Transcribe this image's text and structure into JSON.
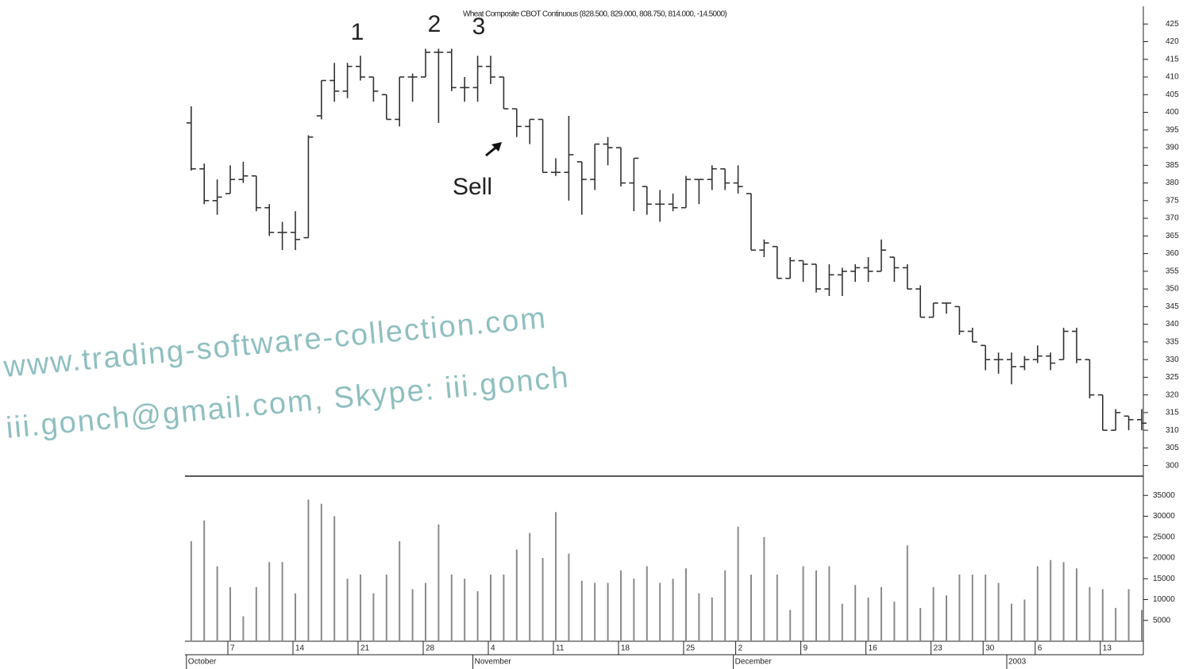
{
  "chart_data": {
    "type": "ohlc",
    "title": "Wheat Composite CBOT Continuous (828.500, 829.000, 808.750, 814.000, -14.5000)",
    "annotations": [
      "1",
      "2",
      "3",
      "Sell"
    ],
    "watermark": [
      "www.trading-software-collection.com",
      "iii.gonch@gmail.com, Skype: iii.gonch"
    ],
    "color": "#333333",
    "categories": [
      null,
      null,
      null,
      "7",
      null,
      null,
      null,
      null,
      "14",
      null,
      null,
      null,
      null,
      "21",
      null,
      null,
      null,
      null,
      "28",
      null,
      null,
      null,
      null,
      "4",
      null,
      null,
      null,
      null,
      "11",
      null,
      null,
      null,
      null,
      "18",
      null,
      null,
      null,
      null,
      "25",
      null,
      null,
      null,
      "2",
      null,
      null,
      null,
      null,
      "9",
      null,
      null,
      null,
      null,
      "16",
      null,
      null,
      null,
      null,
      "23",
      null,
      null,
      null,
      "30",
      null,
      null,
      null,
      "6",
      null,
      null,
      null,
      null,
      "13",
      null,
      null,
      null
    ],
    "months": [
      "October",
      null,
      null,
      null,
      null,
      null,
      null,
      null,
      null,
      null,
      null,
      null,
      null,
      null,
      null,
      null,
      null,
      null,
      null,
      null,
      null,
      null,
      "November",
      null,
      null,
      null,
      null,
      null,
      null,
      null,
      null,
      null,
      null,
      null,
      null,
      null,
      null,
      null,
      null,
      null,
      null,
      null,
      "December",
      null,
      null,
      null,
      null,
      null,
      null,
      null,
      null,
      null,
      null,
      null,
      null,
      null,
      null,
      null,
      null,
      null,
      null,
      null,
      null,
      "2003",
      null,
      null,
      null,
      null,
      null,
      null,
      null,
      null,
      null,
      null
    ],
    "open": [
      397,
      384,
      375,
      377,
      381,
      382,
      373,
      366,
      366,
      364.5,
      399,
      409,
      406,
      413,
      410,
      405,
      398,
      410,
      410,
      417,
      417,
      407,
      407,
      413,
      410,
      401,
      396,
      398,
      383,
      383,
      386,
      381,
      391,
      390,
      380,
      379,
      374,
      374,
      373,
      381,
      381,
      384,
      380,
      377,
      361,
      362,
      353,
      358,
      357,
      350,
      354,
      355,
      356,
      355,
      359,
      356,
      350,
      342,
      346,
      345,
      338,
      334,
      330,
      330,
      328,
      330,
      331,
      330,
      338,
      330,
      320,
      310,
      314,
      313
    ],
    "high": [
      401.7,
      385.5,
      381,
      385,
      386,
      382,
      374,
      369,
      372,
      393.5,
      409,
      414,
      414,
      416,
      410,
      405,
      410,
      411,
      418,
      418,
      418,
      410,
      416,
      416,
      410,
      401,
      398,
      398,
      387,
      399,
      386,
      391,
      393,
      390,
      387,
      379,
      378,
      377,
      382,
      381,
      385,
      384,
      385,
      377,
      364,
      362,
      359,
      358,
      357,
      357,
      356,
      357,
      359,
      364,
      359,
      357,
      351,
      346,
      346,
      345,
      339,
      334,
      332,
      332,
      331,
      334,
      332,
      339,
      339,
      330,
      320,
      316,
      314,
      316
    ],
    "low": [
      383.5,
      374,
      371,
      377,
      380,
      372,
      365,
      361,
      361,
      364.5,
      398,
      403,
      404,
      409,
      403,
      398,
      396,
      403,
      410,
      397,
      406,
      403,
      403,
      408,
      401,
      393,
      391,
      383,
      382,
      375,
      371,
      378,
      385,
      379,
      372,
      371,
      369,
      372,
      373,
      374,
      378,
      378,
      377,
      361,
      359,
      353,
      353,
      352,
      349,
      348,
      348,
      352,
      352,
      355,
      352,
      350,
      342,
      342,
      343,
      337,
      335,
      327,
      326,
      323,
      327,
      329,
      327,
      330,
      329,
      319,
      310,
      310,
      310,
      310
    ],
    "close": [
      384,
      375,
      376,
      381,
      382,
      373,
      366,
      366,
      364,
      393,
      409,
      406,
      413,
      410,
      406,
      398,
      410,
      410,
      417,
      417,
      407,
      407,
      413,
      410,
      401,
      396,
      398,
      383,
      383,
      388,
      381,
      391,
      390,
      380,
      387,
      374,
      374,
      373,
      381,
      381,
      384,
      380,
      379,
      361,
      363,
      353,
      358,
      357,
      350,
      354,
      355,
      356,
      355,
      361,
      356,
      350,
      342,
      346,
      346,
      338,
      335,
      330,
      330,
      328,
      330,
      331,
      329,
      338,
      330,
      320,
      310,
      315,
      313,
      312
    ],
    "ylim": [
      297,
      430
    ],
    "yticks": [
      300,
      305,
      310,
      315,
      320,
      325,
      330,
      335,
      340,
      345,
      350,
      355,
      360,
      365,
      370,
      375,
      380,
      385,
      390,
      395,
      400,
      405,
      410,
      415,
      420,
      425
    ],
    "volume": {
      "color": "#8a8a8a",
      "values": [
        24000,
        29000,
        18000,
        13000,
        6000,
        13000,
        19000,
        19000,
        11500,
        34000,
        33000,
        30000,
        15000,
        16000,
        11500,
        16000,
        24000,
        12500,
        14000,
        28000,
        16000,
        15000,
        12000,
        16000,
        16000,
        22000,
        26000,
        20000,
        31000,
        21000,
        14500,
        14000,
        14000,
        17000,
        15000,
        18000,
        14000,
        15000,
        17500,
        11500,
        10500,
        17000,
        27500,
        16000,
        25000,
        16000,
        7500,
        18000,
        17000,
        18000,
        9000,
        13500,
        10500,
        13000,
        9500,
        23000,
        8000,
        13000,
        11000,
        16000,
        16000,
        16000,
        14000,
        9000,
        10000,
        18000,
        19500,
        19000,
        17500,
        13000,
        12500,
        8000,
        12500,
        7500
      ],
      "ylim": [
        0,
        40000
      ],
      "yticks": [
        5000,
        10000,
        15000,
        20000,
        25000,
        30000,
        35000
      ]
    }
  }
}
